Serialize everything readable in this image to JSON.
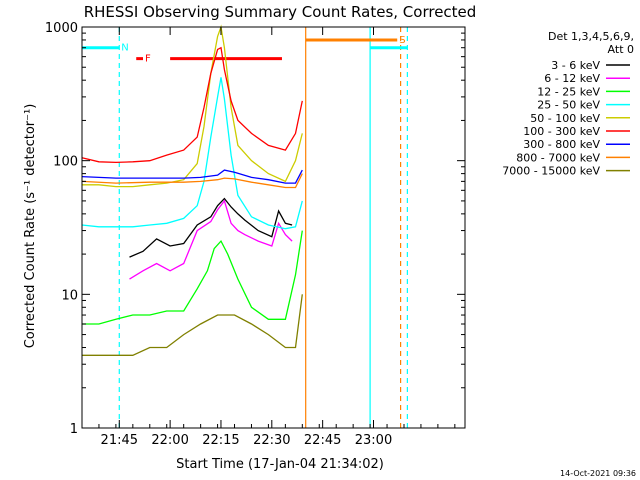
{
  "chart_data": {
    "type": "line",
    "title": "RHESSI Observing Summary Count Rates, Corrected",
    "xlabel": "Start Time (17-Jan-04 21:34:02)",
    "ylabel": "Corrected Count Rate (s⁻¹ detector⁻¹)",
    "ylog": true,
    "ylim": [
      1,
      1000
    ],
    "x_units": "minutes since 21:34:02",
    "xlim": [
      0,
      113
    ],
    "x_ticks": [
      {
        "label": "21:45",
        "at": 11
      },
      {
        "label": "22:00",
        "at": 26
      },
      {
        "label": "22:15",
        "at": 41
      },
      {
        "label": "22:30",
        "at": 56
      },
      {
        "label": "22:45",
        "at": 71
      },
      {
        "label": "23:00",
        "at": 86
      }
    ],
    "y_ticks": [
      {
        "label": "1",
        "at": 1
      },
      {
        "label": "10",
        "at": 10
      },
      {
        "label": "100",
        "at": 100
      },
      {
        "label": "1000",
        "at": 1000
      }
    ],
    "legend": {
      "title_lines": [
        "Det 1,3,4,5,6,9,",
        "Att 0"
      ],
      "placement": "right"
    },
    "series": [
      {
        "name": "3 - 6 keV",
        "color": "#000000",
        "x": [
          14,
          18,
          22,
          26,
          30,
          34,
          38,
          40,
          42,
          44,
          46,
          48,
          52,
          56,
          58,
          60,
          62
        ],
        "y": [
          19,
          21,
          26,
          23,
          24,
          33,
          38,
          46,
          52,
          45,
          40,
          36,
          30,
          27,
          42,
          34,
          33
        ]
      },
      {
        "name": "6 - 12 keV",
        "color": "#ff00ff",
        "x": [
          14,
          18,
          22,
          26,
          30,
          34,
          38,
          40,
          42,
          44,
          46,
          48,
          52,
          56,
          58,
          60,
          62
        ],
        "y": [
          13,
          15,
          17,
          15,
          17,
          30,
          35,
          43,
          50,
          34,
          30,
          28,
          25,
          23,
          34,
          28,
          25
        ]
      },
      {
        "name": "12 - 25 keV",
        "color": "#00ff00",
        "x": [
          0,
          5,
          10,
          15,
          20,
          25,
          30,
          34,
          37,
          39,
          41,
          43,
          46,
          50,
          55,
          60,
          63,
          65
        ],
        "y": [
          6,
          6,
          6.5,
          7,
          7,
          7.5,
          7.5,
          11,
          15,
          22,
          25,
          20,
          13,
          8,
          6.5,
          6.5,
          14,
          30
        ]
      },
      {
        "name": "25 - 50 keV",
        "color": "#00ffff",
        "x": [
          0,
          5,
          10,
          15,
          20,
          25,
          30,
          34,
          36,
          38,
          40,
          41,
          42,
          44,
          46,
          50,
          55,
          60,
          63,
          65
        ],
        "y": [
          33,
          32,
          32,
          32,
          33,
          34,
          37,
          46,
          70,
          150,
          300,
          420,
          290,
          110,
          55,
          38,
          33,
          31,
          32,
          50
        ]
      },
      {
        "name": "50 - 100 keV",
        "color": "#cccc00",
        "x": [
          0,
          5,
          10,
          15,
          20,
          25,
          30,
          34,
          36,
          38,
          40,
          41,
          42,
          44,
          46,
          50,
          55,
          60,
          63,
          65
        ],
        "y": [
          66,
          66,
          64,
          64,
          66,
          68,
          72,
          95,
          180,
          450,
          850,
          1000,
          700,
          250,
          130,
          100,
          80,
          70,
          100,
          160
        ]
      },
      {
        "name": "100 - 300 keV",
        "color": "#ff0000",
        "x": [
          0,
          5,
          10,
          15,
          20,
          25,
          30,
          34,
          36,
          38,
          40,
          41,
          42,
          44,
          46,
          50,
          55,
          60,
          63,
          65
        ],
        "y": [
          105,
          98,
          97,
          98,
          100,
          110,
          120,
          150,
          250,
          450,
          680,
          700,
          480,
          280,
          200,
          160,
          130,
          120,
          160,
          280
        ]
      },
      {
        "name": "300 - 800 keV",
        "color": "#0000ff",
        "x": [
          0,
          10,
          20,
          30,
          35,
          40,
          42,
          45,
          50,
          55,
          60,
          63,
          65
        ],
        "y": [
          76,
          74,
          74,
          74,
          75,
          78,
          85,
          82,
          75,
          72,
          68,
          68,
          85
        ]
      },
      {
        "name": "800 - 7000 keV",
        "color": "#ff8000",
        "x": [
          0,
          10,
          20,
          30,
          35,
          40,
          42,
          45,
          50,
          55,
          60,
          63,
          65
        ],
        "y": [
          70,
          68,
          69,
          69,
          70,
          72,
          74,
          73,
          69,
          66,
          63,
          63,
          80
        ]
      },
      {
        "name": "7000 - 15000 keV",
        "color": "#808000",
        "x": [
          0,
          5,
          10,
          15,
          20,
          25,
          30,
          35,
          40,
          45,
          50,
          55,
          60,
          63,
          65
        ],
        "y": [
          3.5,
          3.5,
          3.5,
          3.5,
          4,
          4,
          5,
          6,
          7,
          7,
          6,
          5,
          4,
          4,
          10
        ]
      }
    ],
    "markers": {
      "verticals": [
        {
          "at": 11,
          "color": "#00ffff",
          "dashed": true
        },
        {
          "at": 66,
          "color": "#ff8000",
          "dashed": false
        },
        {
          "at": 85,
          "color": "#00ffff",
          "dashed": false
        },
        {
          "at": 94,
          "color": "#ff8000",
          "dashed": true
        },
        {
          "at": 96,
          "color": "#00ffff",
          "dashed": true
        }
      ],
      "bars": [
        {
          "label": "N",
          "color": "#00ffff",
          "from": 0,
          "to": 11,
          "level": 700
        },
        {
          "label": "F",
          "color": "#ff0000",
          "from": 16,
          "to": 18,
          "level": 580
        },
        {
          "label": "",
          "color": "#ff0000",
          "from": 26,
          "to": 59,
          "level": 580
        },
        {
          "label": "S",
          "color": "#ff8000",
          "from": 66,
          "to": 93,
          "level": 800
        },
        {
          "label": "",
          "color": "#00ffff",
          "from": 0,
          "to": 0,
          "level": 700
        },
        {
          "label": "",
          "color": "#00ffff",
          "from": 85,
          "to": 96,
          "level": 700
        }
      ]
    }
  },
  "footer": {
    "timestamp": "14-Oct-2021 09:36"
  }
}
